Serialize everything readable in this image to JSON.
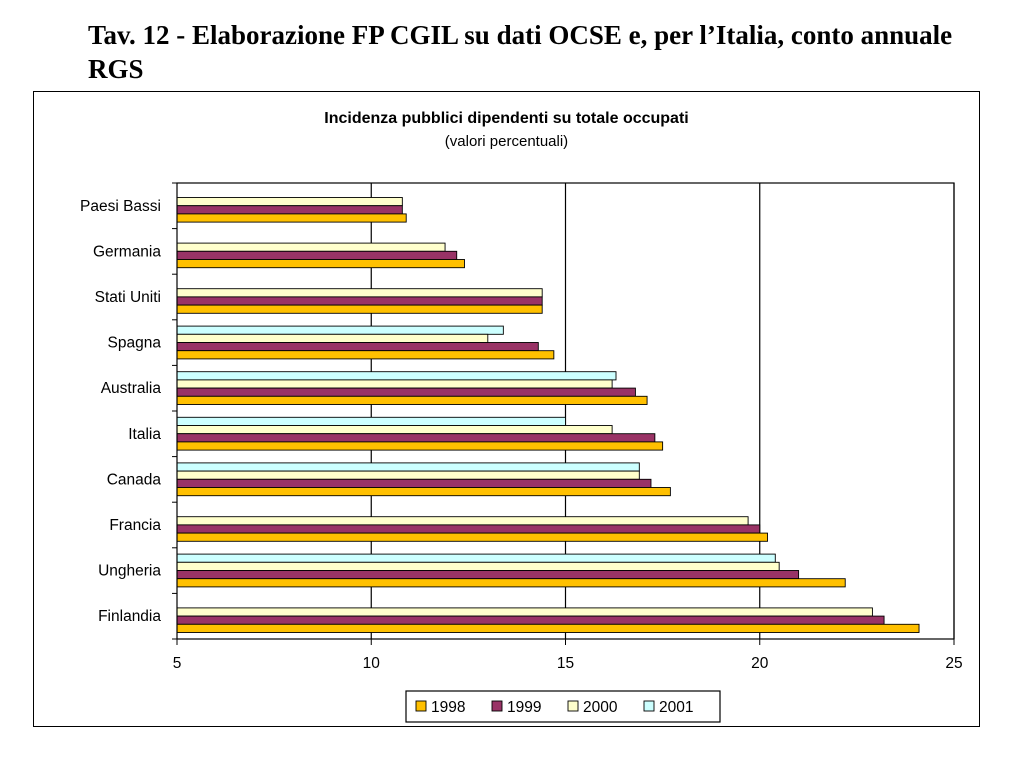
{
  "page": {
    "title": "Tav. 12 - Elaborazione FP CGIL su dati OCSE e, per l’Italia, conto annuale RGS"
  },
  "chart_data": {
    "type": "bar",
    "orientation": "horizontal",
    "title": "Incidenza pubblici dipendenti su totale occupati",
    "subtitle": "(valori percentuali)",
    "xlabel": "",
    "ylabel": "",
    "xlim": [
      5,
      25
    ],
    "xticks": [
      5,
      10,
      15,
      20,
      25
    ],
    "grid": "vertical major gridlines",
    "legend_position": "bottom",
    "categories": [
      "Paesi Bassi",
      "Germania",
      "Stati Uniti",
      "Spagna",
      "Australia",
      "Italia",
      "Canada ",
      "Francia",
      "Ungheria",
      "Finlandia"
    ],
    "series": [
      {
        "name": "1998",
        "color": "#FFC000",
        "values": [
          10.9,
          12.4,
          14.4,
          14.7,
          17.1,
          17.5,
          17.7,
          20.2,
          22.2,
          24.1
        ]
      },
      {
        "name": "1999",
        "color": "#993366",
        "values": [
          10.8,
          12.2,
          14.4,
          14.3,
          16.8,
          17.3,
          17.2,
          20.0,
          21.0,
          23.2
        ]
      },
      {
        "name": "2000",
        "color": "#FFFFCC",
        "values": [
          10.8,
          11.9,
          14.4,
          13.0,
          16.2,
          16.2,
          16.9,
          19.7,
          20.5,
          22.9
        ]
      },
      {
        "name": "2001",
        "color": "#CCFFFF",
        "values": [
          null,
          null,
          null,
          13.4,
          16.3,
          15.0,
          16.9,
          null,
          20.4,
          null
        ]
      }
    ]
  }
}
